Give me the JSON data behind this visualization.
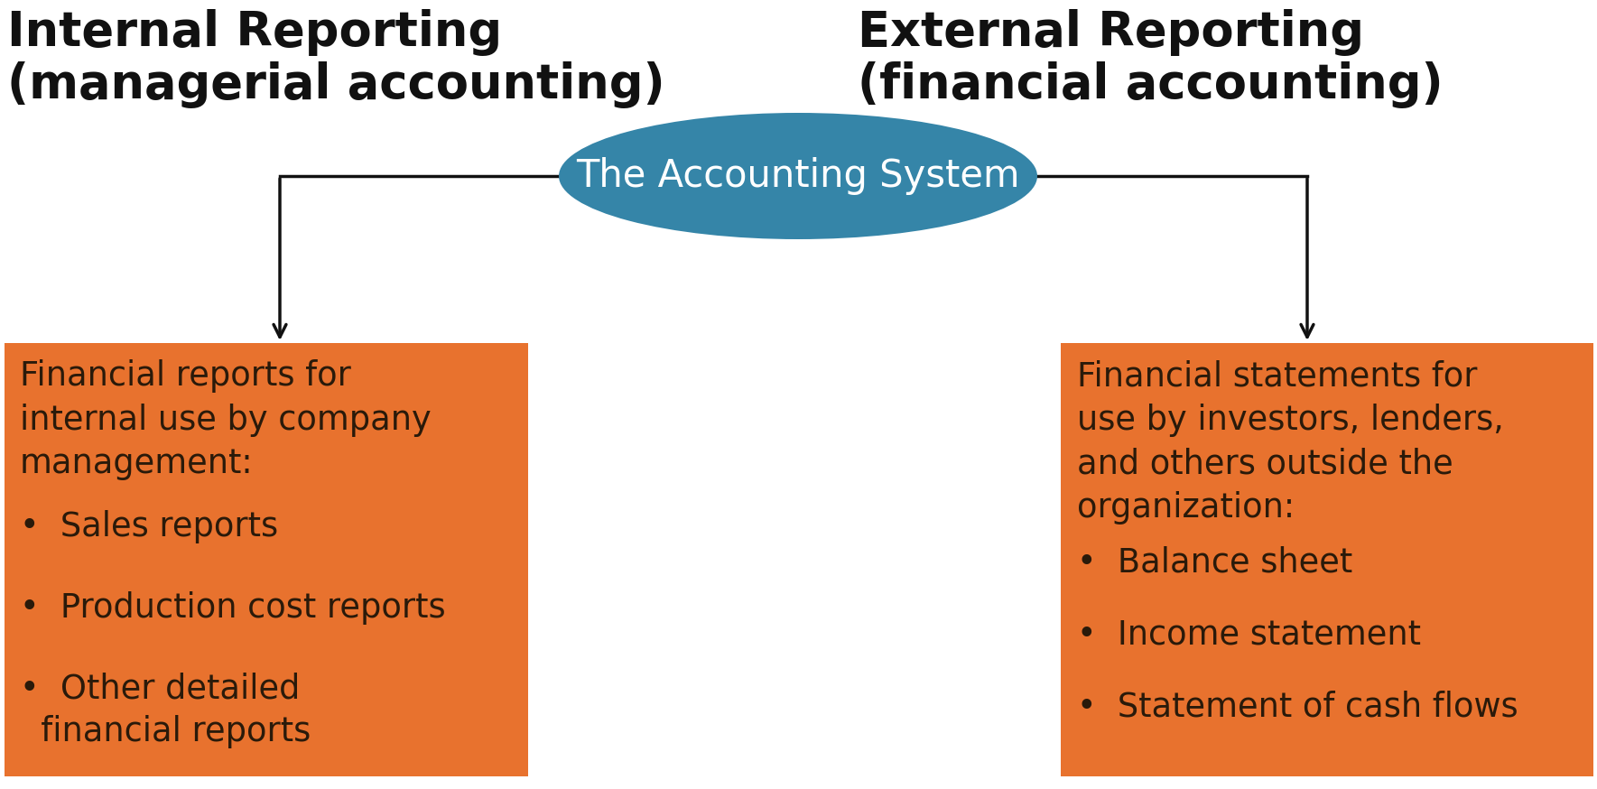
{
  "bg_color": "#ffffff",
  "ellipse_color": "#3585a8",
  "ellipse_text": "The Accounting System",
  "ellipse_text_color": "#ffffff",
  "box_color": "#e8722e",
  "box_text_color": "#2a1a0a",
  "title_left_line1": "Internal Reporting",
  "title_left_line2": "(managerial accounting)",
  "title_right_line1": "External Reporting",
  "title_right_line2": "(financial accounting)",
  "title_color": "#111111",
  "left_box_intro": "Financial reports for\ninternal use by company\nmanagement:",
  "left_box_bullets": [
    "Sales reports",
    "Production cost reports",
    "Other detailed\n  financial reports"
  ],
  "right_box_intro": "Financial statements for\nuse by investors, lenders,\nand others outside the\norganization:",
  "right_box_bullets": [
    "Balance sheet",
    "Income statement",
    "Statement of cash flows"
  ],
  "arrow_color": "#111111"
}
